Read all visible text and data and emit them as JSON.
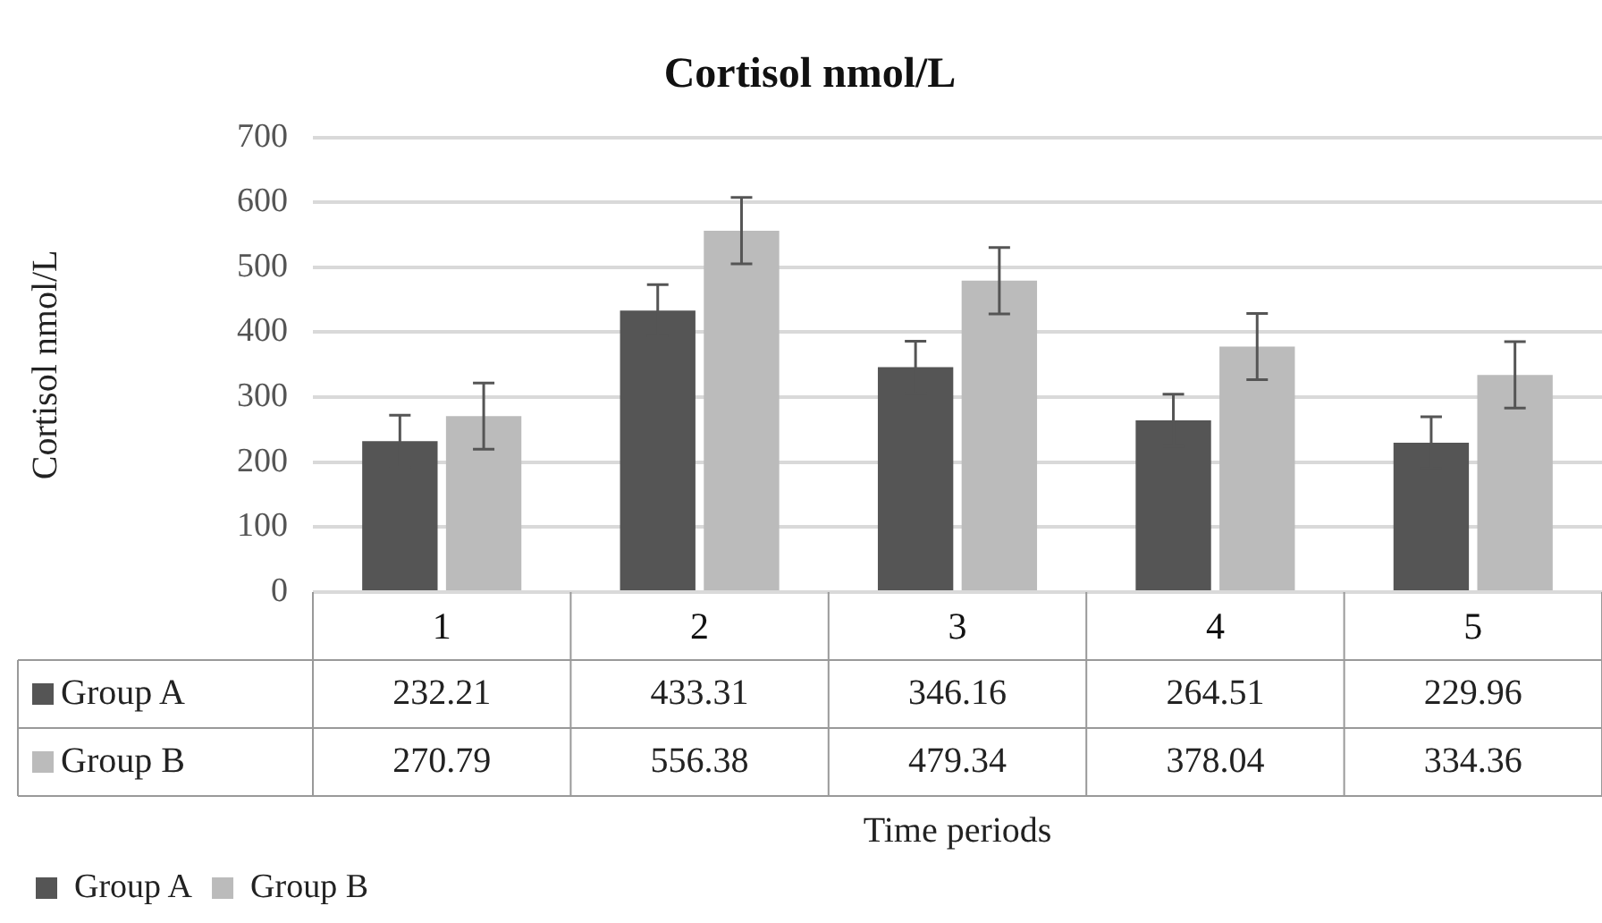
{
  "chart_data": {
    "type": "bar",
    "title": "Cortisol nmol/L",
    "xlabel": "Time periods",
    "ylabel": "Cortisol nmol/L",
    "categories": [
      "1",
      "2",
      "3",
      "4",
      "5"
    ],
    "series": [
      {
        "name": "Group A",
        "color": "#555555",
        "values": [
          232.21,
          433.31,
          346.16,
          264.51,
          229.96
        ],
        "errors": [
          40,
          40,
          40,
          40,
          40
        ]
      },
      {
        "name": "Group B",
        "color": "#bbbbbb",
        "values": [
          270.79,
          556.38,
          479.34,
          378.04,
          334.36
        ],
        "errors": [
          51,
          51,
          51,
          51,
          51
        ]
      }
    ],
    "ylim": [
      0,
      700
    ],
    "yticks": [
      0,
      100,
      200,
      300,
      400,
      500,
      600,
      700
    ],
    "grid": "y",
    "legend": "bottom left",
    "data_labels": true
  }
}
